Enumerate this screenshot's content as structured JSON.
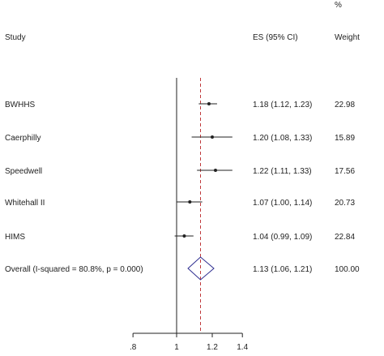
{
  "chart_data": {
    "type": "forest",
    "columns": {
      "study": "Study",
      "es": "ES (95% CI)",
      "weight_pct": "%",
      "weight": "Weight"
    },
    "studies": [
      {
        "label": "BWHHS",
        "es": 1.18,
        "lo": 1.12,
        "hi": 1.23,
        "es_text": "1.18 (1.12, 1.23)",
        "weight": "22.98"
      },
      {
        "label": "Caerphilly",
        "es": 1.2,
        "lo": 1.08,
        "hi": 1.33,
        "es_text": "1.20 (1.08, 1.33)",
        "weight": "15.89"
      },
      {
        "label": "Speedwell",
        "es": 1.22,
        "lo": 1.11,
        "hi": 1.33,
        "es_text": "1.22 (1.11, 1.33)",
        "weight": "17.56"
      },
      {
        "label": "Whitehall II",
        "es": 1.07,
        "lo": 1.0,
        "hi": 1.14,
        "es_text": "1.07 (1.00, 1.14)",
        "weight": "20.73"
      },
      {
        "label": "HIMS",
        "es": 1.04,
        "lo": 0.99,
        "hi": 1.09,
        "es_text": "1.04 (0.99, 1.09)",
        "weight": "22.84"
      }
    ],
    "overall": {
      "label": "Overall  (I-squared = 80.8%, p = 0.000)",
      "es": 1.13,
      "lo": 1.06,
      "hi": 1.21,
      "es_text": "1.13 (1.06, 1.21)",
      "weight": "100.00"
    },
    "x_ticks": [
      {
        "value": 0.8,
        "label": ".8"
      },
      {
        "value": 1.0,
        "label": "1"
      },
      {
        "value": 1.2,
        "label": "1.2"
      },
      {
        "value": 1.4,
        "label": "1.4"
      }
    ],
    "null_value": 1.0,
    "scale": "log",
    "colors": {
      "ink": "#222222",
      "overall_line": "#c0393b",
      "diamond": "#2b2b8f"
    }
  }
}
